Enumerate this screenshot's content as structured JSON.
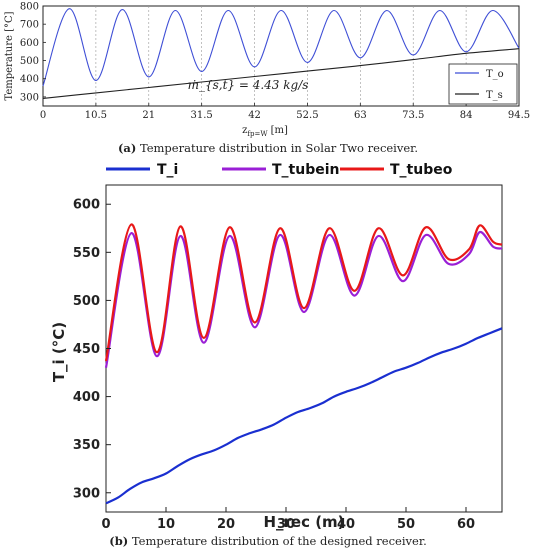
{
  "chart_data": [
    {
      "type": "line",
      "caption_label": "(a)",
      "caption": "Temperature distribution in Solar Two receiver.",
      "xlabel_main": "z",
      "xlabel_sub": "fp=W",
      "xlabel_unit": "[m]",
      "ylabel": "Temperature [°C]",
      "xlim": [
        0,
        94.5
      ],
      "ylim": [
        250,
        800
      ],
      "xticks": [
        "0",
        "10.5",
        "21",
        "31.5",
        "42",
        "52.5",
        "63",
        "73.5",
        "84",
        "94.5"
      ],
      "yticks": [
        300,
        400,
        500,
        600,
        700,
        800
      ],
      "vgrid": [
        10.5,
        21,
        31.5,
        42,
        52.5,
        63,
        73.5,
        84
      ],
      "annotation": "ṁ_{s,t} = 4.43 kg/s",
      "legend_position": "right",
      "series": [
        {
          "name": "T_o",
          "color": "#3f4fd6",
          "x": [
            0,
            5.25,
            10.5,
            15.75,
            21,
            26.25,
            31.5,
            36.75,
            42,
            47.25,
            52.5,
            57.75,
            63,
            68.25,
            73.5,
            78.75,
            84,
            89.25,
            94.5
          ],
          "y": [
            360,
            785,
            390,
            780,
            410,
            775,
            440,
            775,
            465,
            775,
            490,
            775,
            515,
            775,
            530,
            775,
            548,
            775,
            568
          ]
        },
        {
          "name": "T_s",
          "color": "#222222",
          "x": [
            0,
            10.5,
            21,
            31.5,
            42,
            52.5,
            63,
            73.5,
            84,
            94.5
          ],
          "y": [
            292,
            322,
            352,
            382,
            412,
            442,
            472,
            505,
            540,
            565
          ]
        }
      ]
    },
    {
      "type": "line",
      "caption_label": "(b)",
      "caption": "Temperature distribution of the designed receiver.",
      "xlabel": "H_rec (m)",
      "ylabel": "T_i (°C)",
      "xlim": [
        0,
        66
      ],
      "ylim": [
        280,
        620
      ],
      "xticks": [
        0,
        10,
        20,
        30,
        40,
        50,
        60
      ],
      "yticks": [
        300,
        350,
        400,
        450,
        500,
        550,
        600
      ],
      "legend_position": "top",
      "series": [
        {
          "name": "T_i",
          "color": "#1a2fd0",
          "x": [
            0,
            2,
            4,
            6,
            8,
            10,
            12,
            14,
            16,
            18,
            20,
            22,
            24,
            26,
            28,
            30,
            32,
            34,
            36,
            38,
            40,
            42,
            44,
            46,
            48,
            50,
            52,
            54,
            56,
            58,
            60,
            62,
            64,
            66
          ],
          "y": [
            289,
            295,
            304,
            311,
            315,
            320,
            328,
            335,
            340,
            344,
            350,
            357,
            362,
            366,
            371,
            378,
            384,
            388,
            393,
            400,
            405,
            409,
            414,
            420,
            426,
            430,
            435,
            441,
            446,
            450,
            455,
            461,
            466,
            471
          ]
        },
        {
          "name": "T_tubein",
          "color": "#9a1fd6",
          "x": [
            0,
            4.25,
            8.5,
            12.4,
            16.3,
            20.6,
            24.8,
            29,
            33,
            37.2,
            41.4,
            45.4,
            49.5,
            53.3,
            57.1,
            60.5,
            62.3,
            64.5,
            66
          ],
          "y": [
            430,
            570,
            442,
            567,
            456,
            567,
            472,
            568,
            488,
            568,
            505,
            567,
            520,
            568,
            538,
            548,
            571,
            556,
            554
          ]
        },
        {
          "name": "T_tubeo",
          "color": "#e81818",
          "x": [
            0,
            4.25,
            8.5,
            12.4,
            16.3,
            20.6,
            24.8,
            29,
            33,
            37.2,
            41.4,
            45.4,
            49.5,
            53.3,
            57.1,
            60.5,
            62.3,
            64.5,
            66
          ],
          "y": [
            437,
            579,
            446,
            577,
            461,
            576,
            477,
            575,
            492,
            575,
            510,
            575,
            526,
            576,
            543,
            553,
            578,
            561,
            558
          ]
        }
      ]
    }
  ]
}
